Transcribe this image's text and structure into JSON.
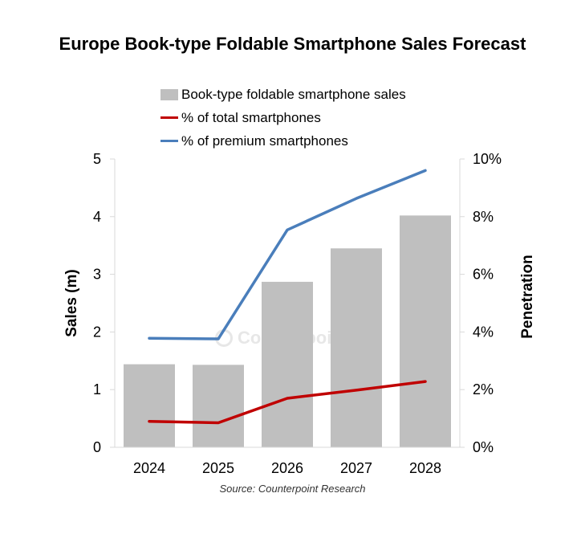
{
  "chart_data": {
    "type": "bar",
    "title": "Europe Book-type Foldable Smartphone Sales Forecast",
    "categories": [
      "2024",
      "2025",
      "2026",
      "2027",
      "2028"
    ],
    "series": [
      {
        "name": "Book-type foldable smartphone sales",
        "type": "bar",
        "axis": "left",
        "values": [
          1.44,
          1.43,
          2.87,
          3.45,
          4.02
        ],
        "color": "#bfbfbf"
      },
      {
        "name": "% of total smartphones",
        "type": "line",
        "axis": "right",
        "values": [
          0.9,
          0.85,
          1.7,
          1.98,
          2.28
        ],
        "color": "#c00000"
      },
      {
        "name": "% of premium smartphones",
        "type": "line",
        "axis": "right",
        "values": [
          3.78,
          3.76,
          7.54,
          8.63,
          9.6
        ],
        "color": "#4a7ebb"
      }
    ],
    "ylabel": "Sales (m)",
    "y2label": "Penetration",
    "ylim": [
      0,
      5
    ],
    "y2lim": [
      0,
      10
    ],
    "yticks": [
      "0",
      "1",
      "2",
      "3",
      "4",
      "5"
    ],
    "y2ticks": [
      "0%",
      "2%",
      "4%",
      "6%",
      "8%",
      "10%"
    ],
    "legend_position": "top",
    "grid": false
  },
  "source": "Source: Counterpoint Research",
  "watermark": "Counterpoint"
}
